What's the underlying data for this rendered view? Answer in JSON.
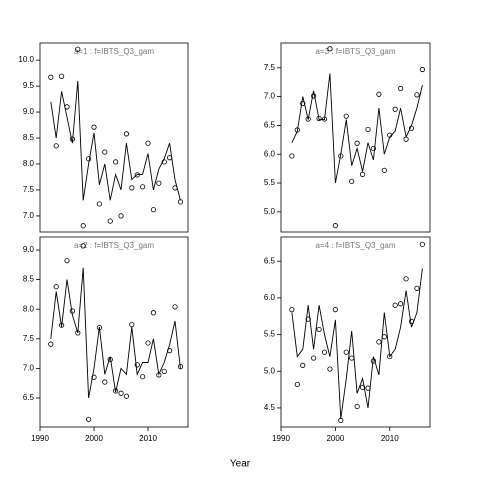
{
  "xlabel": "Year",
  "chart_data": [
    {
      "type": "line",
      "title": "a=1  :  f=IBTS_Q3_gam",
      "x": [
        1992,
        1993,
        1994,
        1995,
        1996,
        1997,
        1998,
        1999,
        2000,
        2001,
        2002,
        2003,
        2004,
        2005,
        2006,
        2007,
        2008,
        2009,
        2010,
        2011,
        2012,
        2013,
        2014,
        2015,
        2016
      ],
      "series": [
        {
          "style": "points",
          "color": "#000000",
          "values": [
            9.67,
            8.35,
            9.69,
            9.1,
            8.48,
            10.21,
            6.81,
            8.1,
            8.71,
            7.23,
            8.23,
            6.9,
            8.04,
            7.0,
            8.58,
            7.54,
            7.79,
            7.56,
            8.4,
            7.12,
            7.63,
            8.04,
            8.12,
            7.54,
            7.27
          ]
        },
        {
          "style": "line",
          "color": "#000000",
          "values": [
            9.2,
            8.5,
            9.4,
            8.9,
            8.4,
            9.6,
            7.3,
            8.0,
            8.6,
            7.6,
            8.0,
            7.3,
            7.8,
            7.5,
            8.4,
            7.7,
            7.8,
            7.8,
            8.2,
            7.5,
            7.9,
            8.1,
            8.4,
            7.7,
            7.3
          ]
        }
      ],
      "xlim": [
        1990,
        2017.4
      ],
      "ylim": [
        6.69,
        10.33
      ],
      "yticks": [
        {
          "value": 7,
          "label": "7.0"
        },
        7.5,
        {
          "value": 8,
          "label": "8.0"
        },
        8.5,
        {
          "value": 9,
          "label": "9.0"
        },
        9.5,
        {
          "value": 10,
          "label": "10.0"
        }
      ]
    },
    {
      "type": "line",
      "title": "a=3  :  f=IBTS_Q3_gam",
      "x": [
        1992,
        1993,
        1994,
        1995,
        1996,
        1997,
        1998,
        1999,
        2000,
        2001,
        2002,
        2003,
        2004,
        2005,
        2006,
        2007,
        2008,
        2009,
        2010,
        2011,
        2012,
        2013,
        2014,
        2015,
        2016
      ],
      "series": [
        {
          "style": "points",
          "color": "#000000",
          "values": [
            5.97,
            6.42,
            6.88,
            6.61,
            7.01,
            6.62,
            6.61,
            7.83,
            4.76,
            5.97,
            6.66,
            5.53,
            6.19,
            5.65,
            6.43,
            6.1,
            7.04,
            5.72,
            6.33,
            6.78,
            7.14,
            6.26,
            6.45,
            7.03,
            7.47
          ]
        },
        {
          "style": "line",
          "color": "#000000",
          "values": [
            6.2,
            6.4,
            7.0,
            6.6,
            7.1,
            6.6,
            6.6,
            7.4,
            5.5,
            6.0,
            6.6,
            5.8,
            6.1,
            5.7,
            6.2,
            5.9,
            6.8,
            6.0,
            6.3,
            6.4,
            6.8,
            6.3,
            6.5,
            6.8,
            7.2
          ]
        }
      ],
      "xlim": [
        1990,
        2017.4
      ],
      "ylim": [
        4.65,
        7.93
      ],
      "yticks": [
        {
          "value": 5,
          "label": "5.0"
        },
        5.5,
        {
          "value": 6,
          "label": "6.0"
        },
        6.5,
        {
          "value": 7,
          "label": "7.0"
        },
        7.5
      ]
    },
    {
      "type": "line",
      "title": "a=2  :  f=IBTS_Q3_gam",
      "x": [
        1992,
        1993,
        1994,
        1995,
        1996,
        1997,
        1998,
        1999,
        2000,
        2001,
        2002,
        2003,
        2004,
        2005,
        2006,
        2007,
        2008,
        2009,
        2010,
        2011,
        2012,
        2013,
        2014,
        2015,
        2016
      ],
      "series": [
        {
          "style": "points",
          "color": "#000000",
          "values": [
            7.41,
            8.38,
            7.73,
            8.82,
            7.97,
            7.6,
            9.07,
            6.14,
            6.85,
            7.69,
            6.77,
            7.15,
            6.62,
            6.58,
            6.53,
            7.74,
            7.06,
            6.86,
            7.43,
            7.94,
            6.89,
            6.95,
            7.3,
            8.04,
            7.03
          ]
        },
        {
          "style": "line",
          "color": "#000000",
          "values": [
            7.5,
            8.3,
            7.7,
            8.5,
            7.9,
            7.6,
            8.7,
            6.5,
            7.0,
            7.7,
            6.9,
            7.2,
            6.6,
            7.0,
            6.9,
            7.7,
            6.9,
            7.1,
            7.1,
            7.5,
            6.9,
            7.1,
            7.4,
            7.8,
            7.0
          ]
        }
      ],
      "xlim": [
        1990,
        2017.4
      ],
      "ylim": [
        6.01,
        9.22
      ],
      "xticks": [
        1990,
        2000,
        2010
      ],
      "yticks": [
        6.5,
        {
          "value": 7,
          "label": "7.0"
        },
        7.5,
        {
          "value": 8,
          "label": "8.0"
        },
        8.5,
        {
          "value": 9,
          "label": "9.0"
        }
      ]
    },
    {
      "type": "line",
      "title": "a=4  :  f=IBTS_Q3_gam",
      "x": [
        1992,
        1993,
        1994,
        1995,
        1996,
        1997,
        1998,
        1999,
        2000,
        2001,
        2002,
        2003,
        2004,
        2005,
        2006,
        2007,
        2008,
        2009,
        2010,
        2011,
        2012,
        2013,
        2014,
        2015,
        2016
      ],
      "series": [
        {
          "style": "points",
          "color": "#000000",
          "values": [
            5.84,
            4.82,
            5.08,
            5.71,
            5.18,
            5.57,
            5.26,
            5.03,
            5.84,
            4.33,
            5.26,
            5.18,
            4.52,
            4.78,
            4.77,
            5.14,
            5.4,
            5.47,
            5.2,
            5.9,
            5.92,
            6.26,
            5.68,
            6.13,
            6.73
          ]
        },
        {
          "style": "line",
          "color": "#000000",
          "values": [
            5.8,
            5.2,
            5.3,
            5.9,
            5.3,
            5.9,
            5.5,
            5.2,
            5.7,
            4.35,
            4.9,
            5.55,
            4.7,
            4.9,
            4.5,
            5.2,
            4.95,
            5.8,
            5.2,
            5.3,
            5.6,
            6.1,
            5.6,
            5.8,
            6.4
          ]
        }
      ],
      "xlim": [
        1990,
        2017.4
      ],
      "ylim": [
        4.24,
        6.83
      ],
      "xticks": [
        1990,
        2000,
        2010
      ],
      "yticks": [
        4.5,
        {
          "value": 5,
          "label": "5.0"
        },
        5.5,
        {
          "value": 6,
          "label": "6.0"
        },
        6.5
      ]
    }
  ]
}
